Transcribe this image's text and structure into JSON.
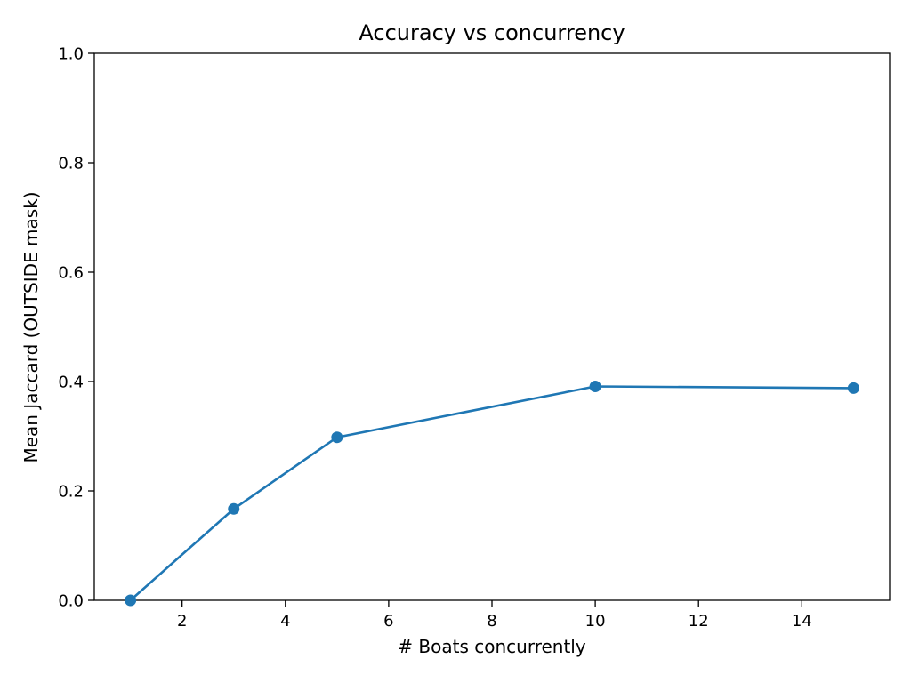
{
  "chart_data": {
    "type": "line",
    "title": "Accuracy vs concurrency",
    "xlabel": "# Boats concurrently",
    "ylabel": "Mean Jaccard (OUTSIDE mask)",
    "xlim": [
      0.3,
      15.7
    ],
    "ylim": [
      0.0,
      1.0
    ],
    "xticks": [
      2,
      4,
      6,
      8,
      10,
      12,
      14
    ],
    "xtick_labels": [
      "2",
      "4",
      "6",
      "8",
      "10",
      "12",
      "14"
    ],
    "yticks": [
      0.0,
      0.2,
      0.4,
      0.6,
      0.8,
      1.0
    ],
    "ytick_labels": [
      "0.0",
      "0.2",
      "0.4",
      "0.6",
      "0.8",
      "1.0"
    ],
    "grid": false,
    "series": [
      {
        "color": "#1f77b4",
        "marker": "circle",
        "x": [
          1,
          3,
          5,
          10,
          15
        ],
        "y": [
          0.0,
          0.167,
          0.298,
          0.391,
          0.388
        ]
      }
    ]
  }
}
